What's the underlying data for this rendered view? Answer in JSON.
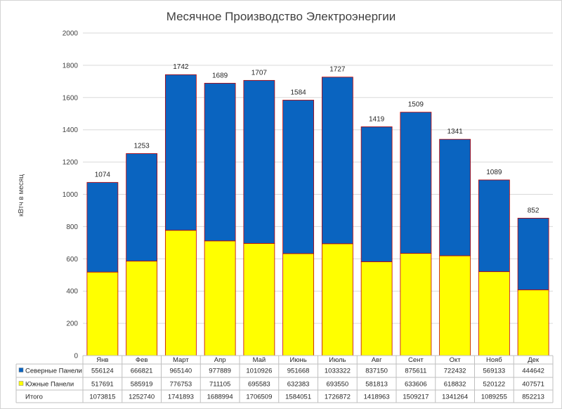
{
  "chart_data": {
    "type": "bar",
    "stacked": true,
    "title": "Месячное Производство Электроэнергии",
    "ylabel": "кВтч в месяц",
    "ylim": [
      0,
      2000
    ],
    "yticks": [
      "0",
      "200",
      "400",
      "600",
      "800",
      "1000",
      "1200",
      "1400",
      "1600",
      "1800",
      "2000"
    ],
    "categories": [
      "Янв",
      "Фев",
      "Март",
      "Апр",
      "Май",
      "Июнь",
      "Июль",
      "Авг",
      "Сент",
      "Окт",
      "Нояб",
      "Дек"
    ],
    "series": [
      {
        "name": "Южные Панели",
        "color": "#ffff00",
        "table_values": [
          "517691",
          "585919",
          "776753",
          "711105",
          "695583",
          "632383",
          "693550",
          "581813",
          "633606",
          "618832",
          "520122",
          "407571"
        ]
      },
      {
        "name": "Северные Панели",
        "color": "#0a64c0",
        "table_values": [
          "556124",
          "666821",
          "965140",
          "977889",
          "1010926",
          "951668",
          "1033322",
          "837150",
          "875611",
          "722432",
          "569133",
          "444642"
        ]
      }
    ],
    "total_row": {
      "name": "Итого",
      "table_values": [
        "1073815",
        "1252740",
        "1741893",
        "1688994",
        "1706509",
        "1584051",
        "1726872",
        "1418963",
        "1509217",
        "1341264",
        "1089255",
        "852213"
      ]
    },
    "bar_labels": [
      "1074",
      "1253",
      "1742",
      "1689",
      "1707",
      "1584",
      "1727",
      "1419",
      "1509",
      "1341",
      "1089",
      "852"
    ],
    "grid": true,
    "legend": "data-table"
  }
}
